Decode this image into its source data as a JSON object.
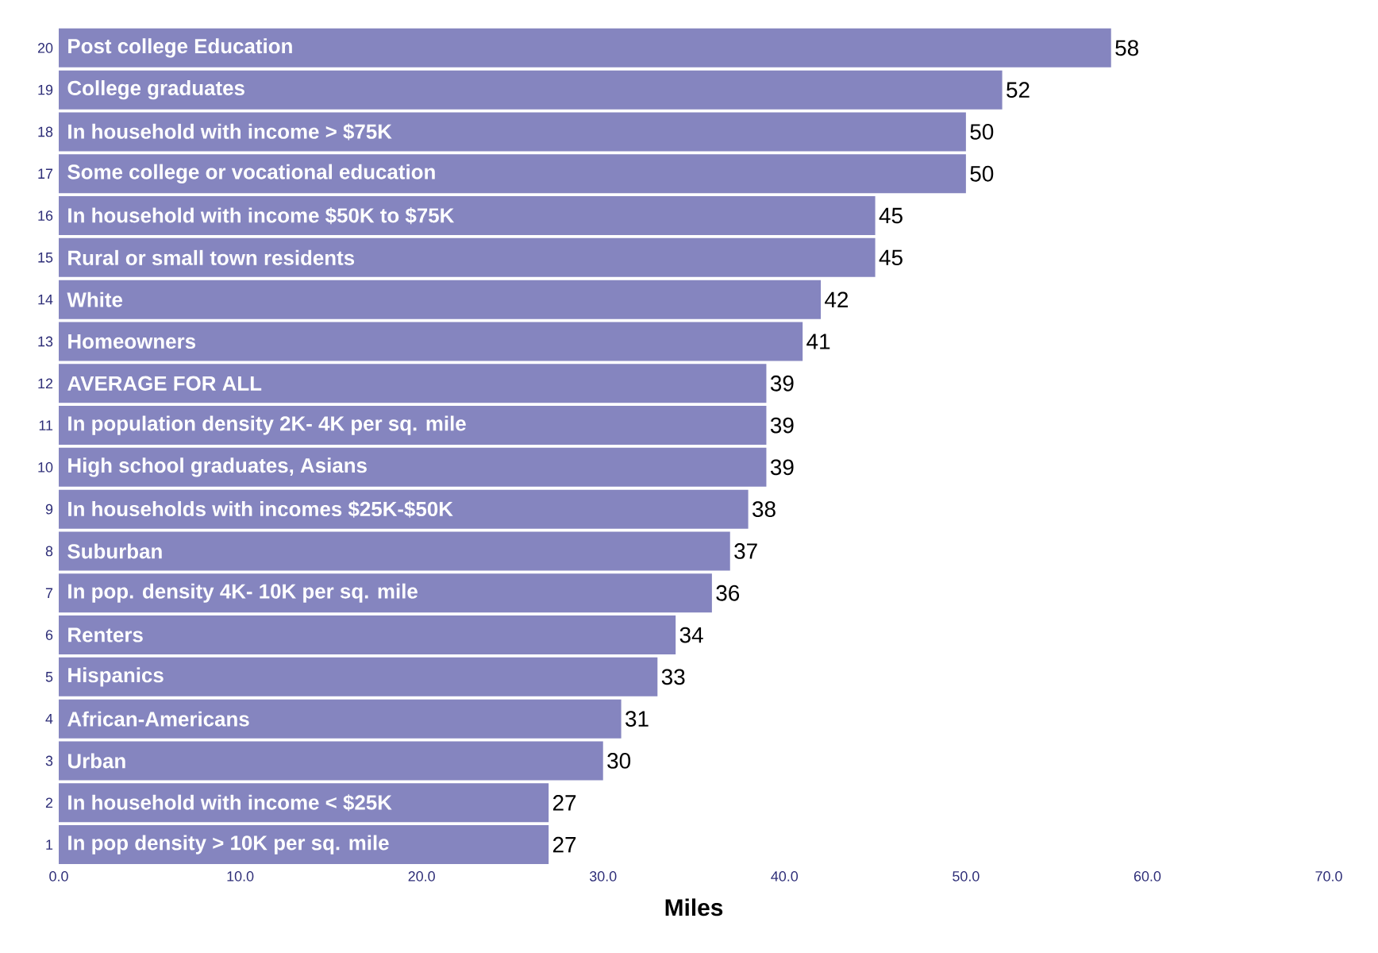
{
  "chart_data": {
    "type": "bar",
    "orientation": "horizontal",
    "xlabel": "Miles",
    "categories": [
      "20",
      "19",
      "18",
      "17",
      "16",
      "15",
      "14",
      "13",
      "12",
      "11",
      "10",
      "9",
      "8",
      "7",
      "6",
      "5",
      "4",
      "3",
      "2",
      "1"
    ],
    "values": [
      58,
      52,
      50,
      50,
      45,
      45,
      42,
      41,
      39,
      39,
      39,
      38,
      37,
      36,
      34,
      33,
      31,
      30,
      27,
      27
    ],
    "color": "#8585bf",
    "xlim": [
      0,
      70
    ],
    "xticks": [
      {
        "value": 0,
        "label": "0.0"
      },
      {
        "value": 10,
        "label": "10.0"
      },
      {
        "value": 20,
        "label": "20.0"
      },
      {
        "value": 30,
        "label": "30.0"
      },
      {
        "value": 40,
        "label": "40.0"
      },
      {
        "value": 50,
        "label": "50.0"
      },
      {
        "value": 60,
        "label": "60.0"
      },
      {
        "value": 70,
        "label": "70.0"
      }
    ],
    "data_labels": true,
    "annotations": [
      "Post college Education",
      "College graduates",
      "In household with income > $75K",
      "Some college or vocational education",
      "In household with income $50K to $75K",
      "Rural or small town residents",
      "White",
      "Homeowners",
      "AVERAGE FOR ALL",
      "In population density 2K- 4K per sq. mile",
      "High school graduates, Asians",
      "In households with incomes $25K-$50K",
      "Suburban",
      "In pop. density 4K- 10K per sq. mile",
      "Renters",
      "Hispanics",
      "African-Americans",
      "Urban",
      "In household with income < $25K",
      "In pop density > 10K per sq. mile"
    ]
  }
}
